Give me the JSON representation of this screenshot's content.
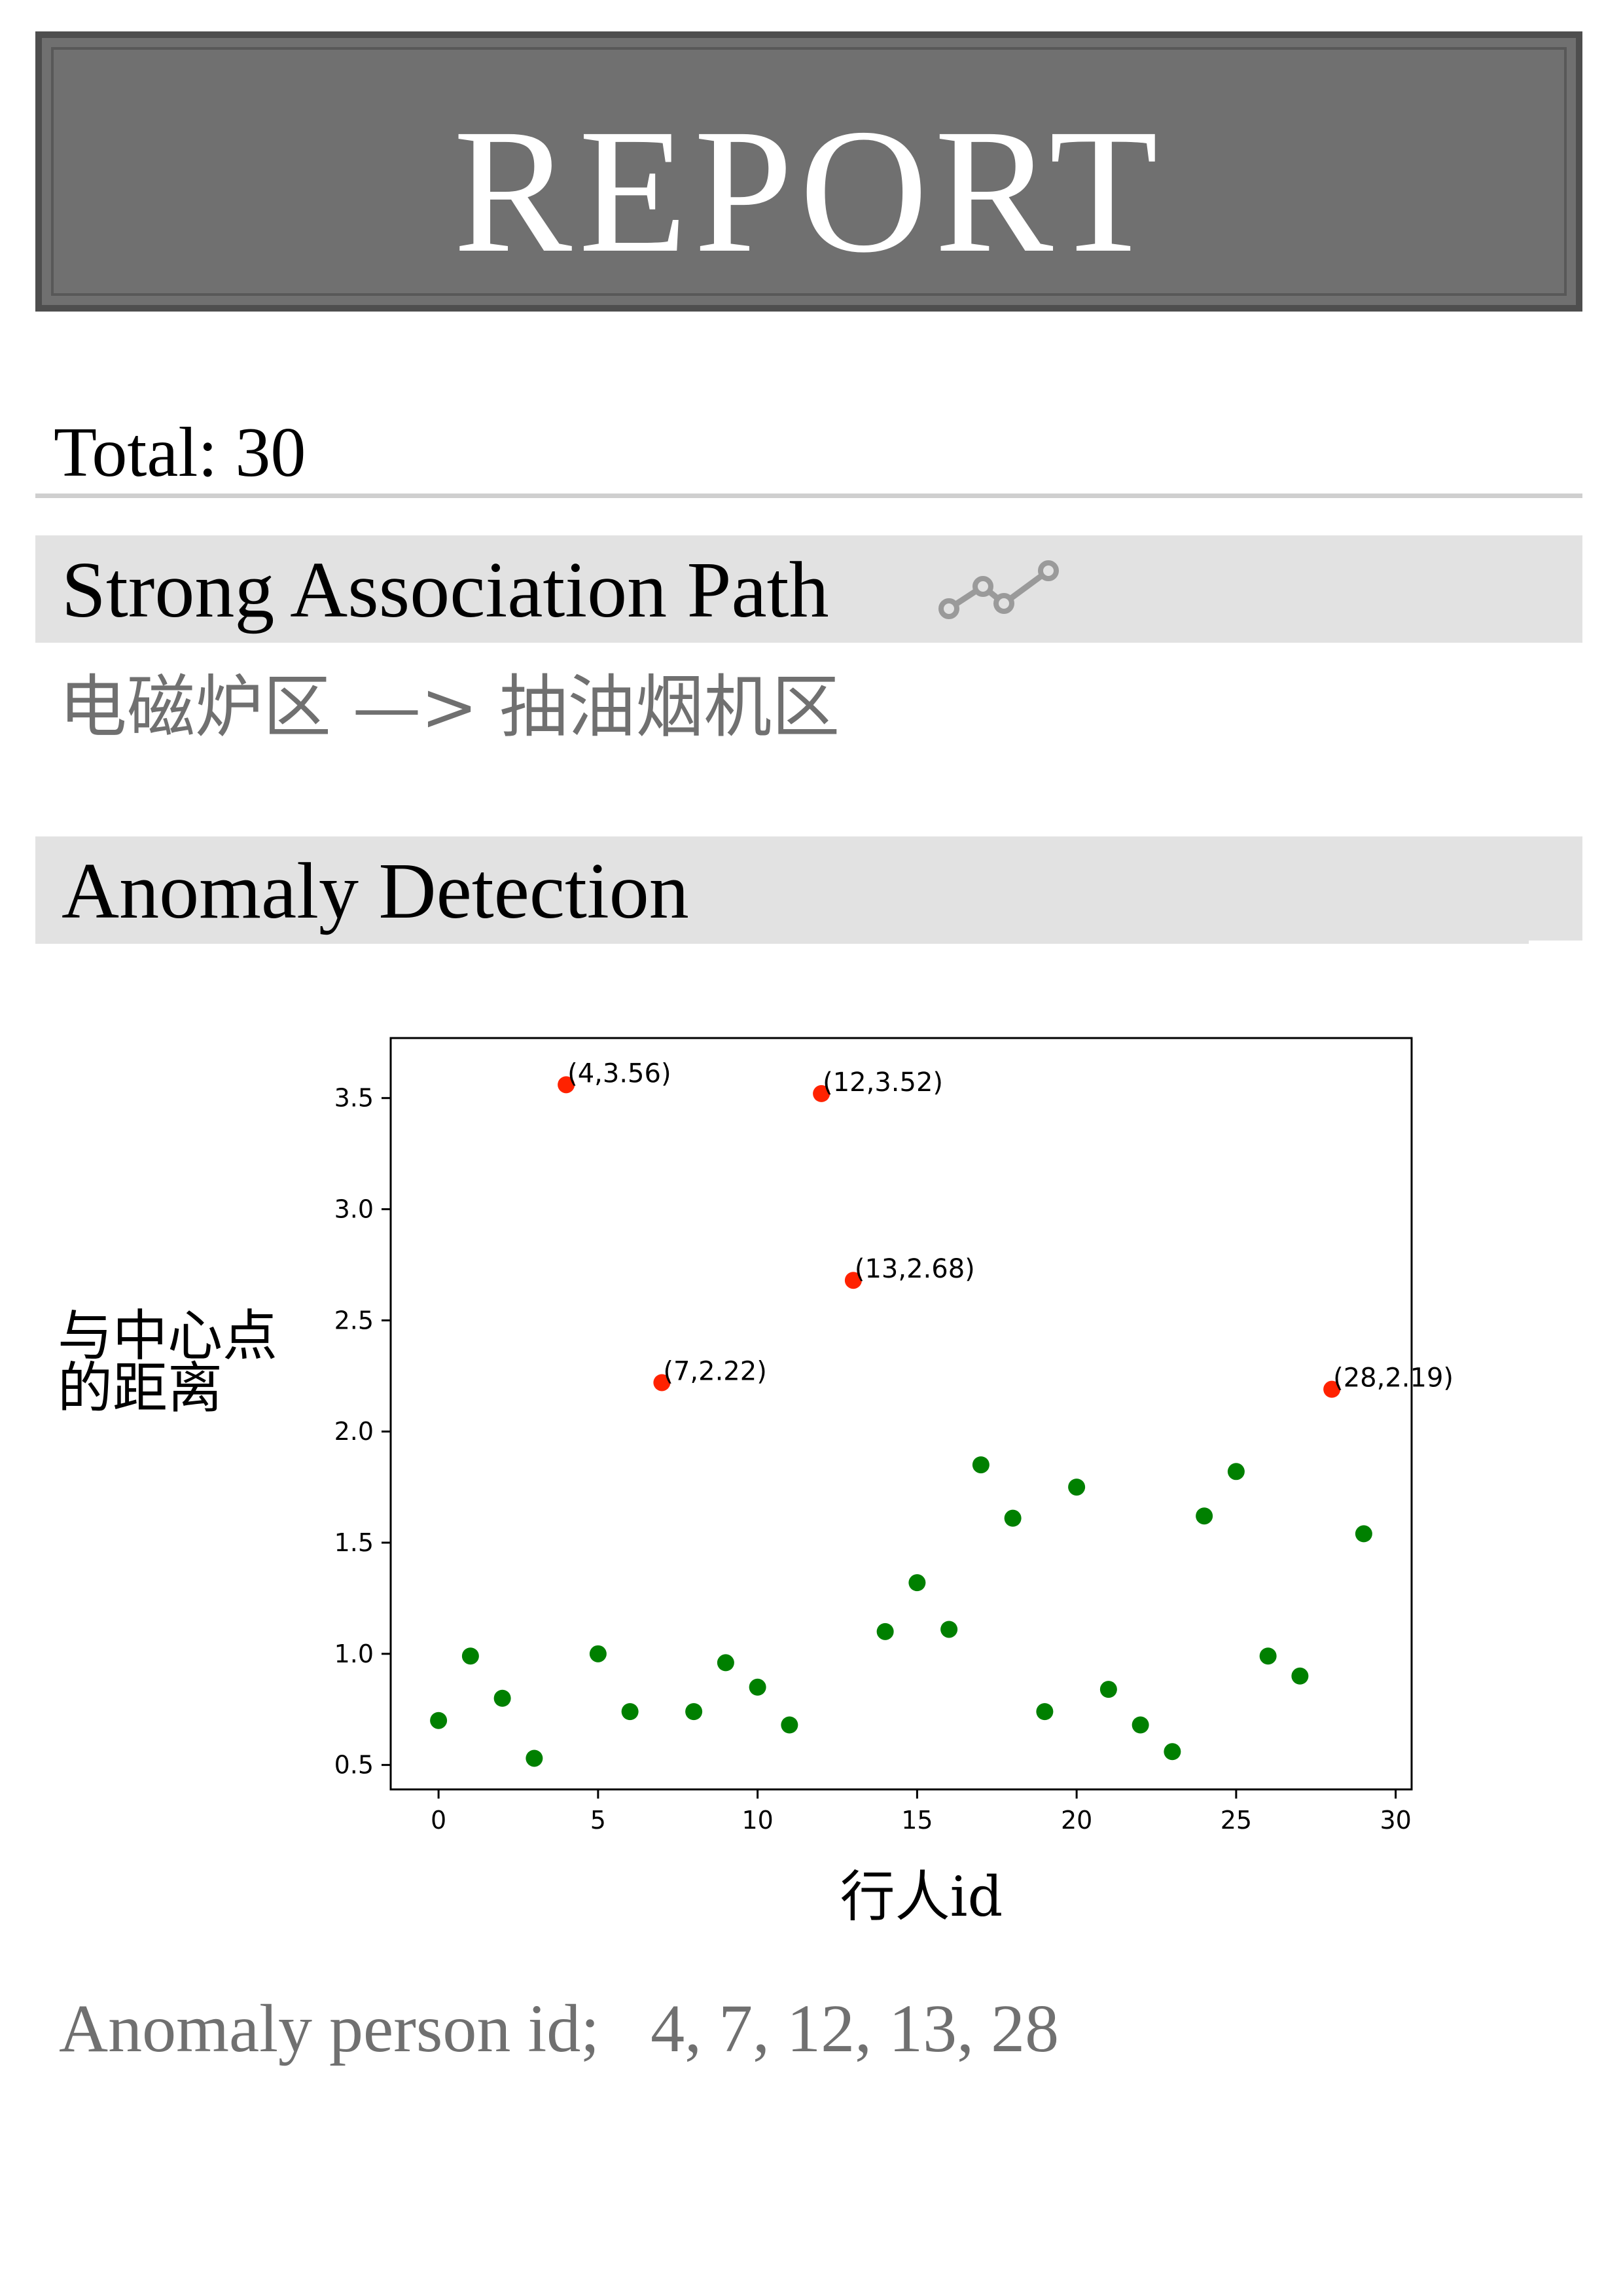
{
  "banner": {
    "title": "REPORT"
  },
  "summary": {
    "total": "Total: 30"
  },
  "association": {
    "heading": "Strong Association Path",
    "icon": "line-chart-icon",
    "path": "电磁炉区 —> 抽油烟机区"
  },
  "anomaly": {
    "heading": "Anomaly Detection",
    "result": "Anomaly person id;   4, 7, 12, 13, 28"
  },
  "colors": {
    "banner": "#707070",
    "banner_border": "#4e4e4e",
    "section_bg": "#e2e2e2",
    "muted_text": "#707070",
    "normal_point": "#008000",
    "anomaly_point": "#ff2200"
  },
  "chart_data": {
    "type": "scatter",
    "xlabel": "行人id",
    "ylabel": "与中心点的距离",
    "ylabel_lines": [
      "与中心点",
      "的距离"
    ],
    "xlim": [
      -1.5,
      30.5
    ],
    "ylim": [
      0.39,
      3.77
    ],
    "xticks": [
      0,
      5,
      10,
      15,
      20,
      25,
      30
    ],
    "yticks": [
      0.5,
      1.0,
      1.5,
      2.0,
      2.5,
      3.0,
      3.5
    ],
    "grid": false,
    "series": [
      {
        "role": "normal",
        "color": "#008000",
        "x": [
          0,
          1,
          2,
          3,
          5,
          6,
          8,
          9,
          10,
          11,
          14,
          15,
          16,
          17,
          18,
          19,
          20,
          21,
          22,
          23,
          24,
          25,
          26,
          27,
          29
        ],
        "y": [
          0.7,
          0.99,
          0.8,
          0.53,
          1.0,
          0.74,
          0.74,
          0.96,
          0.85,
          0.68,
          1.1,
          1.32,
          1.11,
          1.85,
          1.61,
          0.74,
          1.75,
          0.84,
          0.68,
          0.56,
          1.62,
          1.82,
          0.99,
          0.9,
          1.54
        ]
      },
      {
        "role": "anomaly",
        "color": "#ff2200",
        "x": [
          4,
          7,
          12,
          13,
          28
        ],
        "y": [
          3.56,
          2.22,
          3.52,
          2.68,
          2.19
        ],
        "labels": [
          "(4,3.56)",
          "(7,2.22)",
          "(12,3.52)",
          "(13,2.68)",
          "(28,2.19)"
        ]
      }
    ]
  }
}
